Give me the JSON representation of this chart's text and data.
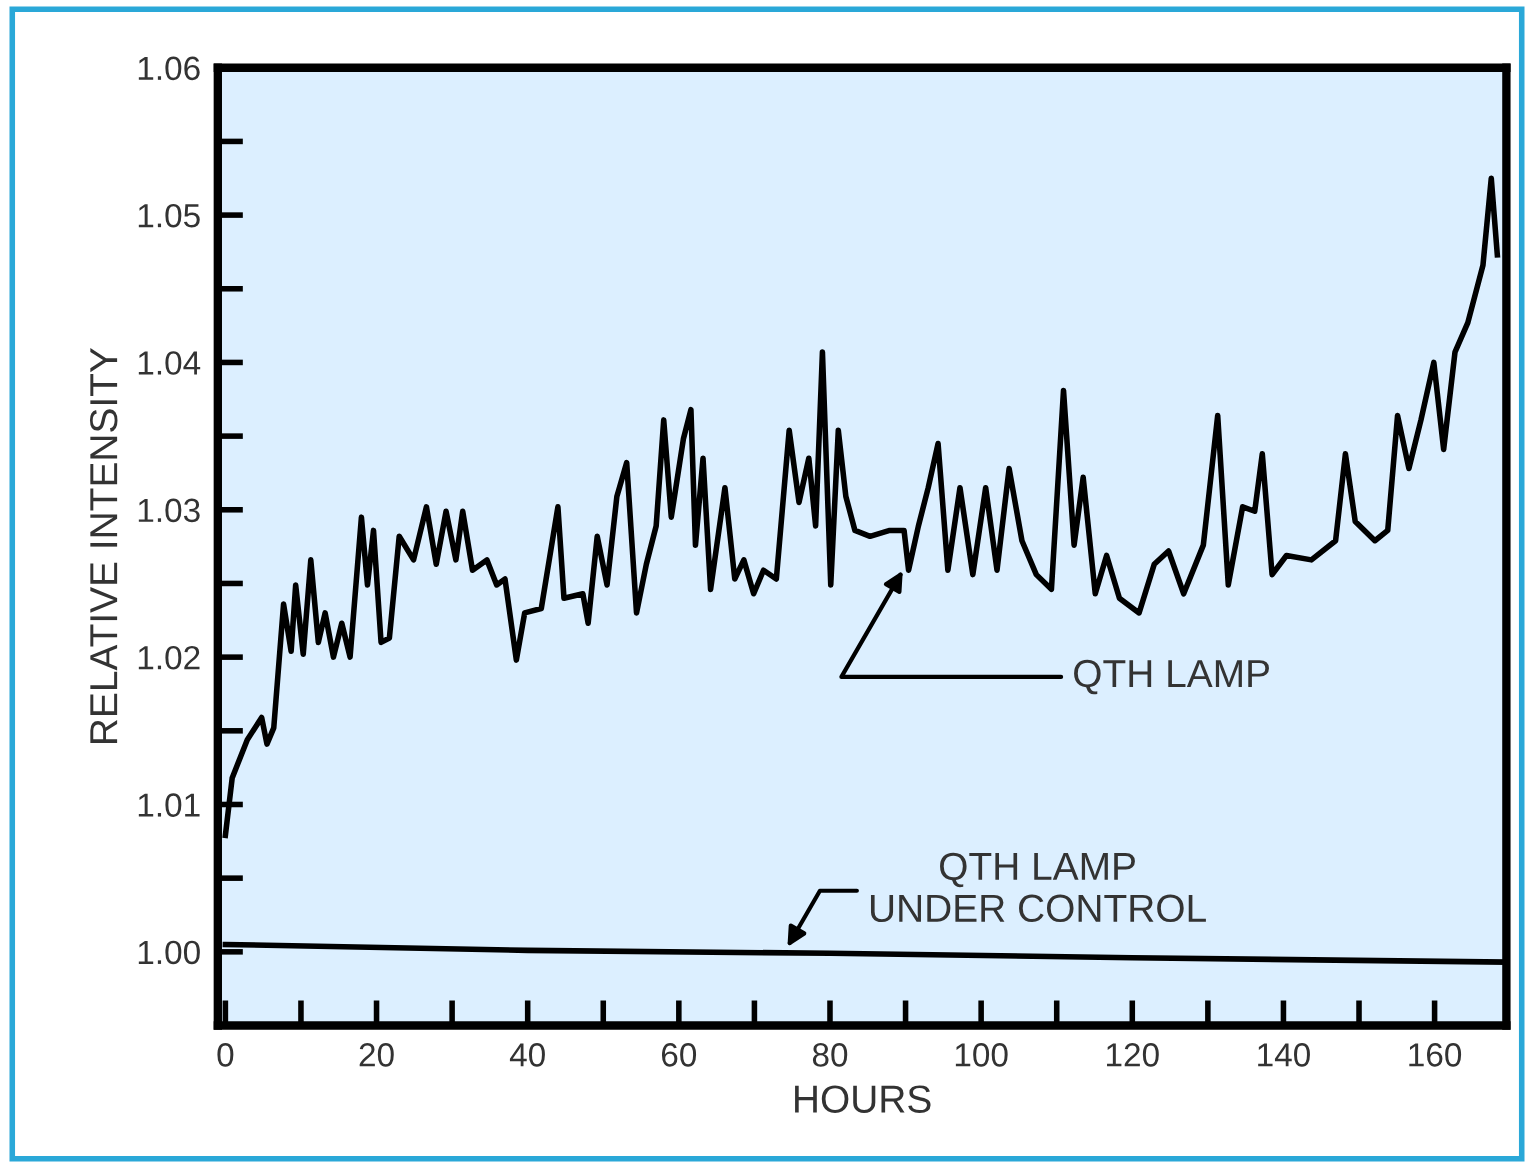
{
  "chart_data": {
    "type": "line",
    "xlabel": "HOURS",
    "ylabel": "RELATIVE INTENSITY",
    "xlim": [
      -1,
      169.5
    ],
    "ylim": [
      0.995,
      1.06
    ],
    "xticks": [
      0,
      {
        "value": 10,
        "label": null
      },
      20,
      {
        "value": 30,
        "label": null
      },
      40,
      {
        "value": 50,
        "label": null
      },
      60,
      {
        "value": 70,
        "label": null
      },
      80,
      {
        "value": 90,
        "label": null
      },
      100,
      {
        "value": 110,
        "label": null
      },
      120,
      {
        "value": 130,
        "label": null
      },
      140,
      {
        "value": 150,
        "label": null
      },
      160
    ],
    "yticks": [
      {
        "value": 1.0,
        "label": "1.00"
      },
      {
        "value": 1.005,
        "label": null
      },
      {
        "value": 1.01,
        "label": "1.01"
      },
      {
        "value": 1.015,
        "label": null
      },
      {
        "value": 1.02,
        "label": "1.02"
      },
      {
        "value": 1.025,
        "label": null
      },
      {
        "value": 1.03,
        "label": "1.03"
      },
      {
        "value": 1.035,
        "label": null
      },
      {
        "value": 1.04,
        "label": "1.04"
      },
      {
        "value": 1.045,
        "label": null
      },
      {
        "value": 1.05,
        "label": "1.05"
      },
      {
        "value": 1.055,
        "label": null
      },
      {
        "value": 1.06,
        "label": "1.06"
      }
    ],
    "grid": false,
    "legend": false,
    "marker": "none",
    "line_style": "solid",
    "series": [
      {
        "color": "#000000",
        "x": [
          0,
          0.9,
          2.9,
          4.8,
          5.5,
          6.4,
          7.7,
          8.7,
          9.3,
          10.3,
          11.3,
          12.3,
          13.2,
          14.3,
          15.4,
          16.5,
          18.0,
          18.8,
          19.6,
          20.6,
          21.7,
          23.0,
          24.9,
          26.6,
          27.9,
          29.2,
          30.5,
          31.4,
          32.7,
          34.6,
          35.9,
          37.0,
          38.5,
          39.6,
          41.8,
          44.0,
          44.8,
          47.3,
          48.0,
          49.2,
          50.5,
          51.8,
          53.1,
          54.4,
          55.7,
          57.0,
          58.0,
          59.0,
          60.6,
          61.6,
          62.2,
          63.2,
          64.2,
          66.1,
          67.4,
          68.6,
          69.9,
          71.2,
          72.9,
          74.6,
          75.9,
          77.2,
          78.1,
          79.0,
          80.1,
          81.1,
          82.1,
          83.3,
          85.3,
          87.9,
          89.8,
          90.4,
          91.7,
          93.0,
          94.3,
          95.6,
          97.2,
          98.9,
          100.6,
          102.1,
          103.7,
          105.4,
          107.3,
          109.3,
          110.9,
          112.3,
          113.5,
          115.1,
          116.6,
          118.3,
          120.9,
          122.9,
          124.8,
          126.8,
          129.4,
          131.3,
          132.7,
          134.6,
          136.2,
          137.2,
          138.5,
          140.4,
          143.7,
          146.9,
          148.2,
          149.5,
          152.1,
          153.8,
          155.1,
          156.6,
          158.2,
          159.9,
          161.2,
          162.7,
          164.4,
          166.4,
          167.5,
          168.3
        ],
        "values": [
          1.0079,
          1.0118,
          1.0144,
          1.0159,
          1.0141,
          1.0152,
          1.0236,
          1.0204,
          1.0249,
          1.0202,
          1.0266,
          1.021,
          1.023,
          1.02,
          1.0223,
          1.02,
          1.0295,
          1.0249,
          1.0286,
          1.021,
          1.0213,
          1.0282,
          1.0266,
          1.0302,
          1.0263,
          1.0299,
          1.0266,
          1.0299,
          1.0259,
          1.0266,
          1.0249,
          1.0253,
          1.0198,
          1.023,
          1.0233,
          1.0302,
          1.024,
          1.0243,
          1.0223,
          1.0282,
          1.0249,
          1.0309,
          1.0332,
          1.023,
          1.0263,
          1.0289,
          1.0361,
          1.0295,
          1.0348,
          1.0368,
          1.0276,
          1.0335,
          1.0246,
          1.0315,
          1.0253,
          1.0266,
          1.0243,
          1.0259,
          1.0253,
          1.0354,
          1.0305,
          1.0335,
          1.0289,
          1.0407,
          1.0249,
          1.0354,
          1.0309,
          1.0286,
          1.0282,
          1.0286,
          1.0286,
          1.0259,
          1.0289,
          1.0315,
          1.0345,
          1.0259,
          1.0315,
          1.0256,
          1.0315,
          1.0259,
          1.0328,
          1.0279,
          1.0256,
          1.0246,
          1.0381,
          1.0276,
          1.0322,
          1.0243,
          1.0269,
          1.024,
          1.023,
          1.0263,
          1.0272,
          1.0243,
          1.0276,
          1.0364,
          1.0249,
          1.0302,
          1.0299,
          1.0338,
          1.0256,
          1.0269,
          1.0266,
          1.0279,
          1.0338,
          1.0292,
          1.0279,
          1.0286,
          1.0364,
          1.0328,
          1.0361,
          1.04,
          1.0341,
          1.0407,
          1.0427,
          1.0466,
          1.0525,
          1.0473
        ]
      },
      {
        "color": "#000000",
        "x": [
          0,
          40,
          80,
          120,
          169.5
        ],
        "values": [
          1.0005,
          1.0001,
          0.9999,
          0.9996,
          0.9993
        ]
      }
    ],
    "annotations": [
      {
        "text": "QTH LAMP",
        "x": 90,
        "y": 1.0262
      },
      {
        "text": "QTH LAMP\nUNDER CONTROL",
        "x": 74,
        "y": 1.0
      }
    ]
  }
}
